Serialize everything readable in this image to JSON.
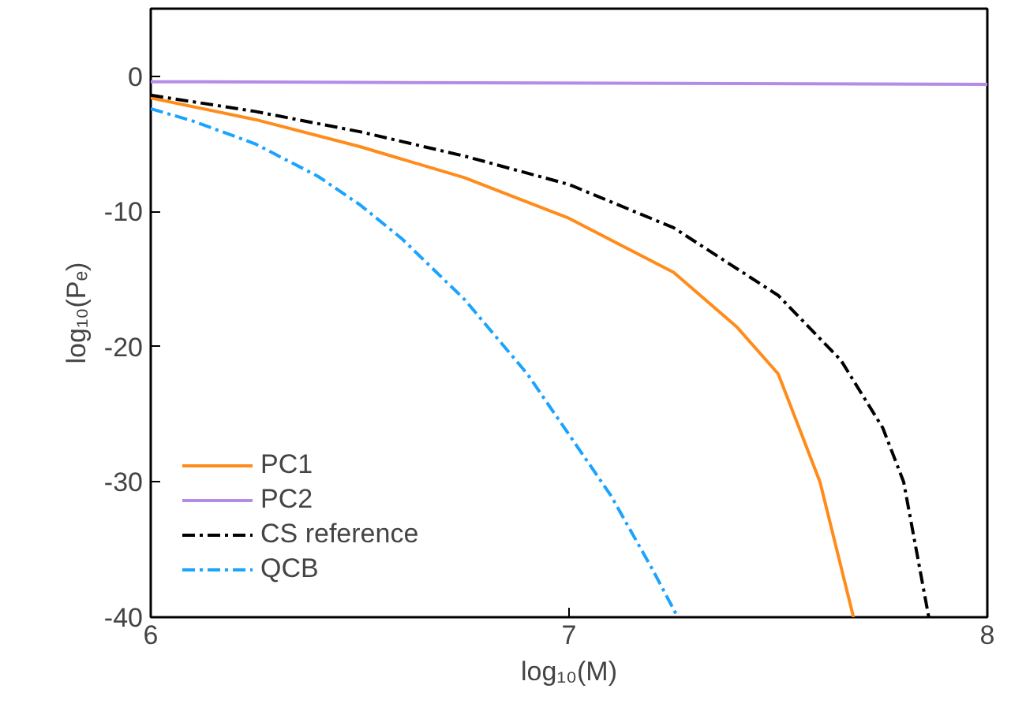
{
  "chart_data": {
    "type": "line",
    "xlabel": "log₁₀(M)",
    "ylabel": "log₁₀(Pₑ)",
    "xlim": [
      6,
      8
    ],
    "ylim": [
      -40,
      5
    ],
    "xticks": [
      6,
      7,
      8
    ],
    "yticks": [
      0,
      -10,
      -20,
      -30,
      -40
    ],
    "grid": false,
    "legend": "bottom left",
    "marker": "none",
    "series": [
      {
        "name": "PC1",
        "color": "#ff8c1a",
        "line_style": "solid",
        "x": [
          6,
          6.25,
          6.5,
          6.75,
          7,
          7.25,
          7.4,
          7.5,
          7.6,
          7.68
        ],
        "values": [
          -1.6,
          -3.2,
          -5.2,
          -7.5,
          -10.5,
          -14.5,
          -18.5,
          -22,
          -30,
          -40
        ]
      },
      {
        "name": "PC2",
        "color": "#b28ce6",
        "line_style": "solid",
        "x": [
          6,
          8
        ],
        "values": [
          -0.4,
          -0.6
        ]
      },
      {
        "name": "CS reference",
        "color": "#000000",
        "line_style": "dashdot",
        "x": [
          6,
          6.25,
          6.5,
          6.75,
          7,
          7.25,
          7.5,
          7.65,
          7.75,
          7.8,
          7.86
        ],
        "values": [
          -1.4,
          -2.6,
          -4.1,
          -5.9,
          -8.0,
          -11.2,
          -16.2,
          -21,
          -26,
          -30,
          -40
        ]
      },
      {
        "name": "QCB",
        "color": "#1aa3ff",
        "line_style": "dashdot",
        "x": [
          6,
          6.1,
          6.25,
          6.4,
          6.5,
          6.6,
          6.75,
          6.9,
          7,
          7.1,
          7.2,
          7.26
        ],
        "values": [
          -2.4,
          -3.3,
          -5,
          -7.4,
          -9.5,
          -12,
          -16.5,
          -22,
          -26.5,
          -31,
          -36.5,
          -40
        ]
      }
    ]
  }
}
